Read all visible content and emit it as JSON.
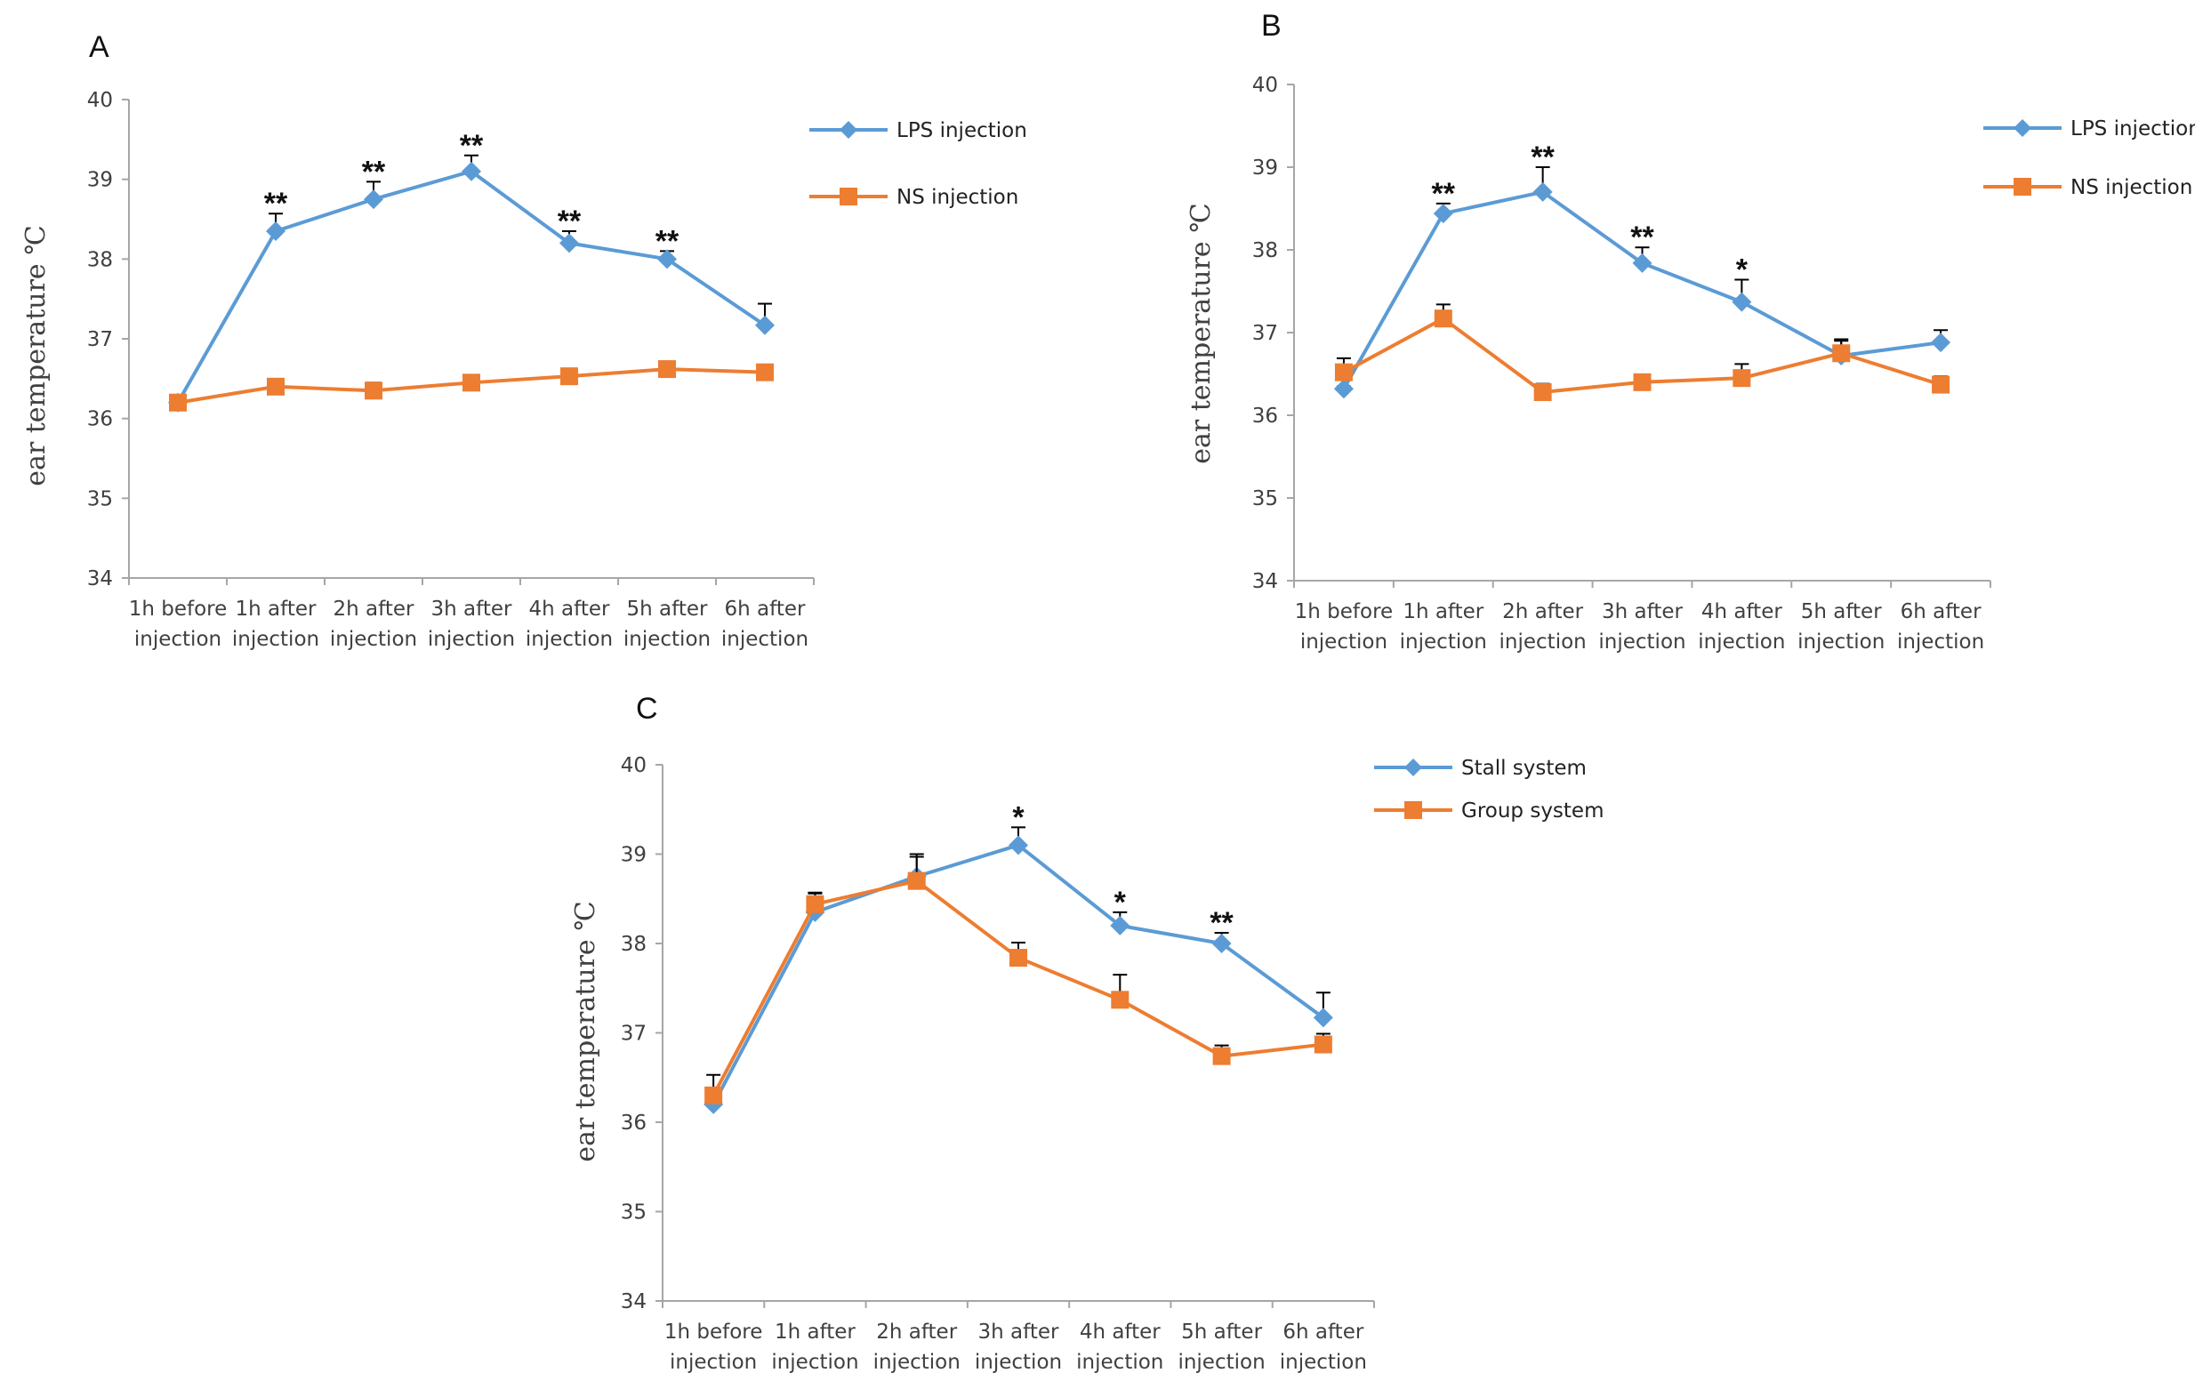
{
  "colors": {
    "blue": "#5B9BD5",
    "orange": "#ED7D31",
    "axis": "#A6A6A6"
  },
  "chart_data": [
    {
      "type": "line",
      "panel_label": "A",
      "title": "",
      "xlabel": "",
      "ylabel": "ear temperature ℃",
      "ylim": [
        34,
        40
      ],
      "yticks": [
        34,
        35,
        36,
        37,
        38,
        39,
        40
      ],
      "categories": [
        [
          "1h before",
          "injection"
        ],
        [
          "1h after",
          "injection"
        ],
        [
          "2h after",
          "injection"
        ],
        [
          "3h after",
          "injection"
        ],
        [
          "4h after",
          "injection"
        ],
        [
          "5h after",
          "injection"
        ],
        [
          "6h after",
          "injection"
        ]
      ],
      "legend_position": "top-right",
      "series": [
        {
          "name": "LPS injection",
          "color": "#5B9BD5",
          "marker": "diamond",
          "values": [
            36.2,
            38.35,
            38.75,
            39.1,
            38.2,
            38.0,
            37.17
          ],
          "errors": [
            0.0,
            0.22,
            0.22,
            0.2,
            0.15,
            0.1,
            0.27
          ]
        },
        {
          "name": "NS injection",
          "color": "#ED7D31",
          "marker": "square",
          "values": [
            36.2,
            36.4,
            36.35,
            36.45,
            36.53,
            36.62,
            36.58
          ],
          "errors": [
            0.04,
            0.05,
            0.1,
            0.05,
            0.04,
            0.06,
            0.09
          ]
        }
      ],
      "annotations": [
        {
          "index": 1,
          "text": "**"
        },
        {
          "index": 2,
          "text": "**"
        },
        {
          "index": 3,
          "text": "**"
        },
        {
          "index": 4,
          "text": "**"
        },
        {
          "index": 5,
          "text": "**"
        }
      ]
    },
    {
      "type": "line",
      "panel_label": "B",
      "title": "",
      "xlabel": "",
      "ylabel": "ear temperature ℃",
      "ylim": [
        34,
        40
      ],
      "yticks": [
        34,
        35,
        36,
        37,
        38,
        39,
        40
      ],
      "categories": [
        [
          "1h before",
          "injection"
        ],
        [
          "1h after",
          "injection"
        ],
        [
          "2h after",
          "injection"
        ],
        [
          "3h after",
          "injection"
        ],
        [
          "4h after",
          "injection"
        ],
        [
          "5h after",
          "injection"
        ],
        [
          "6h after",
          "injection"
        ]
      ],
      "legend_position": "top-right",
      "series": [
        {
          "name": "LPS injection",
          "color": "#5B9BD5",
          "marker": "diamond",
          "values": [
            36.32,
            38.44,
            38.7,
            37.84,
            37.37,
            36.72,
            36.88
          ],
          "errors": [
            0.03,
            0.12,
            0.3,
            0.19,
            0.27,
            0.18,
            0.15
          ]
        },
        {
          "name": "NS injection",
          "color": "#ED7D31",
          "marker": "square",
          "values": [
            36.52,
            37.17,
            36.28,
            36.4,
            36.45,
            36.75,
            36.37
          ],
          "errors": [
            0.17,
            0.17,
            0.1,
            0.04,
            0.17,
            0.17,
            0.1
          ]
        }
      ],
      "annotations": [
        {
          "index": 1,
          "text": "**"
        },
        {
          "index": 2,
          "text": "**"
        },
        {
          "index": 3,
          "text": "**"
        },
        {
          "index": 4,
          "text": "*"
        }
      ]
    },
    {
      "type": "line",
      "panel_label": "C",
      "title": "",
      "xlabel": "",
      "ylabel": "ear temperature ℃",
      "ylim": [
        34,
        40
      ],
      "yticks": [
        34,
        35,
        36,
        37,
        38,
        39,
        40
      ],
      "categories": [
        [
          "1h before",
          "injection"
        ],
        [
          "1h after",
          "injection"
        ],
        [
          "2h after",
          "injection"
        ],
        [
          "3h after",
          "injection"
        ],
        [
          "4h after",
          "injection"
        ],
        [
          "5h after",
          "injection"
        ],
        [
          "6h after",
          "injection"
        ]
      ],
      "legend_position": "top-right",
      "series": [
        {
          "name": "Stall system",
          "color": "#5B9BD5",
          "marker": "diamond",
          "values": [
            36.2,
            38.35,
            38.75,
            39.1,
            38.2,
            38.0,
            37.17
          ],
          "errors": [
            0.0,
            0.22,
            0.22,
            0.2,
            0.15,
            0.12,
            0.28
          ]
        },
        {
          "name": "Group system",
          "color": "#ED7D31",
          "marker": "square",
          "values": [
            36.3,
            38.44,
            38.7,
            37.84,
            37.37,
            36.74,
            36.87
          ],
          "errors": [
            0.23,
            0.12,
            0.3,
            0.17,
            0.28,
            0.12,
            0.12
          ]
        }
      ],
      "annotations": [
        {
          "index": 3,
          "text": "*"
        },
        {
          "index": 4,
          "text": "*"
        },
        {
          "index": 5,
          "text": "**"
        }
      ]
    }
  ]
}
